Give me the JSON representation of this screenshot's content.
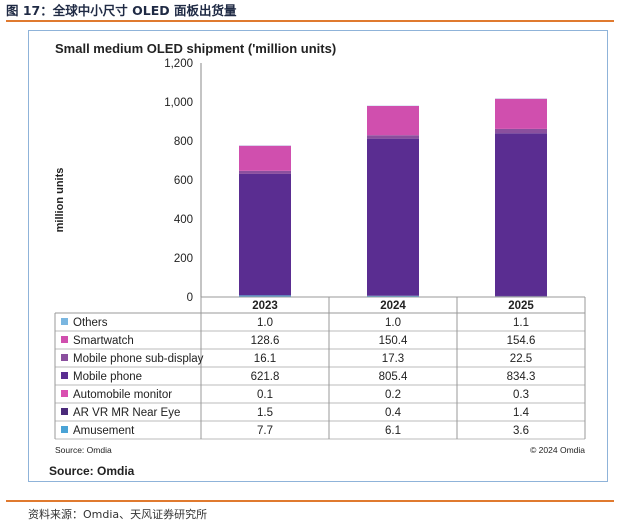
{
  "figure_title": "图 17：全球中小尺寸 OLED 面板出货量",
  "figure_source": "资料来源：Omdia、天风证券研究所",
  "colors": {
    "accent_rule": "#e07a2f",
    "panel_border": "#8fb3d9"
  },
  "chart_data": {
    "type": "bar",
    "stacked": true,
    "title": "Small medium OLED shipment ('million units)",
    "ylabel": "million units",
    "xlabel": "",
    "ylim": [
      0,
      1200
    ],
    "yticks": [
      "0",
      "200",
      "400",
      "600",
      "800",
      "1,000",
      "1,200"
    ],
    "grid": false,
    "categories": [
      "2023",
      "2024",
      "2025"
    ],
    "series": [
      {
        "name": "Amusement",
        "values": [
          7.7,
          6.1,
          3.6
        ],
        "color": "#4aa3d6"
      },
      {
        "name": "AR VR MR Near Eye",
        "values": [
          1.5,
          0.4,
          1.4
        ],
        "color": "#4b2a7a"
      },
      {
        "name": "Automobile monitor",
        "values": [
          0.1,
          0.2,
          0.3
        ],
        "color": "#d94fb0"
      },
      {
        "name": "Mobile phone",
        "values": [
          621.8,
          805.4,
          834.3
        ],
        "color": "#5a2d91"
      },
      {
        "name": "Mobile phone sub-display",
        "values": [
          16.1,
          17.3,
          22.5
        ],
        "color": "#8a4f9e"
      },
      {
        "name": "Smartwatch",
        "values": [
          128.6,
          150.4,
          154.6
        ],
        "color": "#d04fae"
      },
      {
        "name": "Others",
        "values": [
          1.0,
          1.0,
          1.1
        ],
        "color": "#7ab6e0"
      }
    ],
    "table_rows": [
      {
        "label": "Others",
        "values": [
          "1.0",
          "1.0",
          "1.1"
        ]
      },
      {
        "label": "Smartwatch",
        "values": [
          "128.6",
          "150.4",
          "154.6"
        ]
      },
      {
        "label": "Mobile phone sub-display",
        "values": [
          "16.1",
          "17.3",
          "22.5"
        ]
      },
      {
        "label": "Mobile phone",
        "values": [
          "621.8",
          "805.4",
          "834.3"
        ]
      },
      {
        "label": "Automobile monitor",
        "values": [
          "0.1",
          "0.2",
          "0.3"
        ]
      },
      {
        "label": "AR VR MR Near Eye",
        "values": [
          "1.5",
          "0.4",
          "1.4"
        ]
      },
      {
        "label": "Amusement",
        "values": [
          "7.7",
          "6.1",
          "3.6"
        ]
      }
    ],
    "source_small": "Source: Omdia",
    "copyright": "© 2024 Omdia",
    "source_large": "Source: Omdia"
  }
}
